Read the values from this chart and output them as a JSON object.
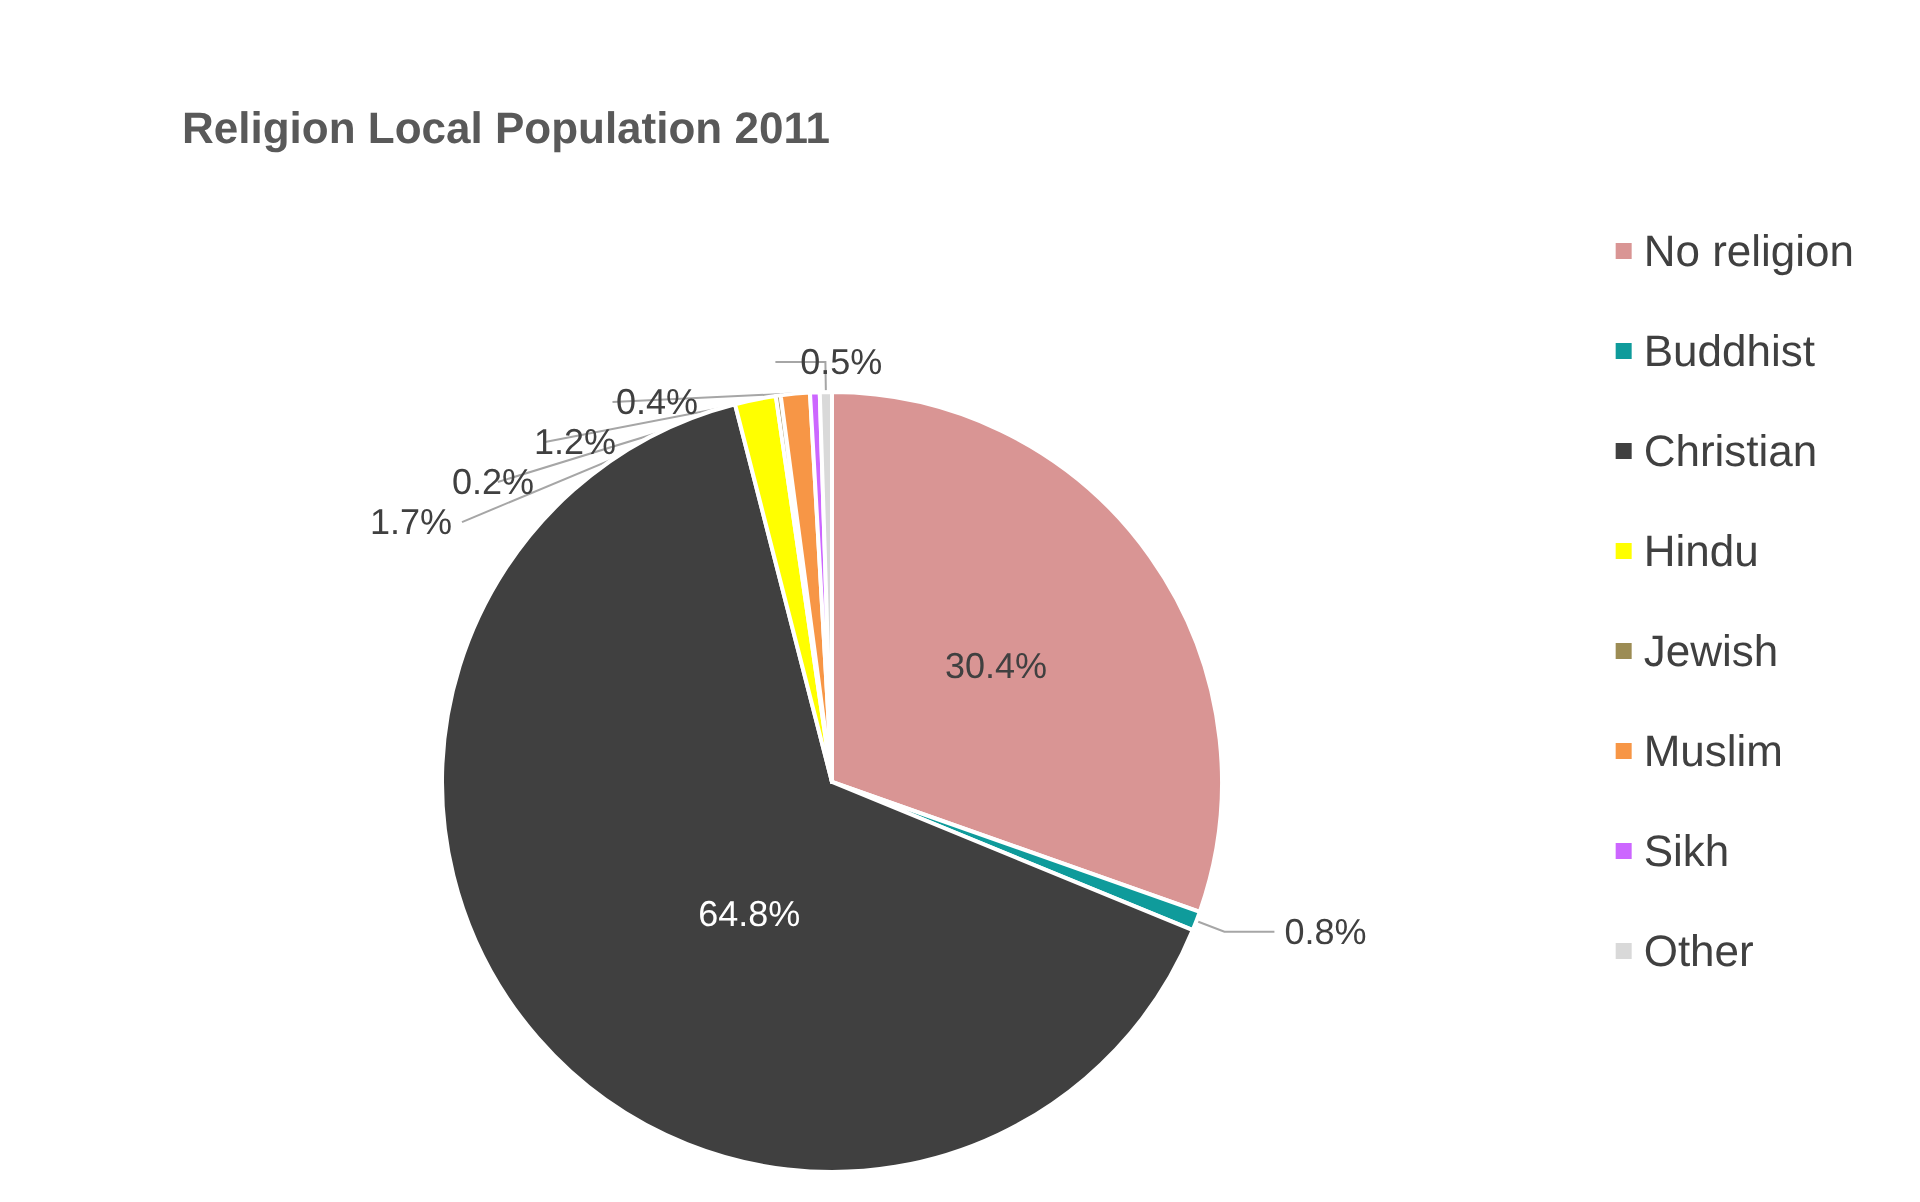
{
  "chart_data": {
    "type": "pie",
    "title": "Religion Local Population 2011",
    "categories": [
      "No religion",
      "Buddhist",
      "Christian",
      "Hindu",
      "Jewish",
      "Muslim",
      "Sikh",
      "Other"
    ],
    "values": [
      30.4,
      0.8,
      64.8,
      1.7,
      0.2,
      1.2,
      0.4,
      0.5
    ],
    "value_labels": [
      "30.4%",
      "0.8%",
      "64.8%",
      "1.7%",
      "0.2%",
      "1.2%",
      "0.4%",
      "0.5%"
    ],
    "colors": [
      "#d99594",
      "#0f9b9b",
      "#404040",
      "#ffff00",
      "#9c8c54",
      "#f79646",
      "#cc66ff",
      "#d9d9d9"
    ],
    "legend": "right"
  }
}
